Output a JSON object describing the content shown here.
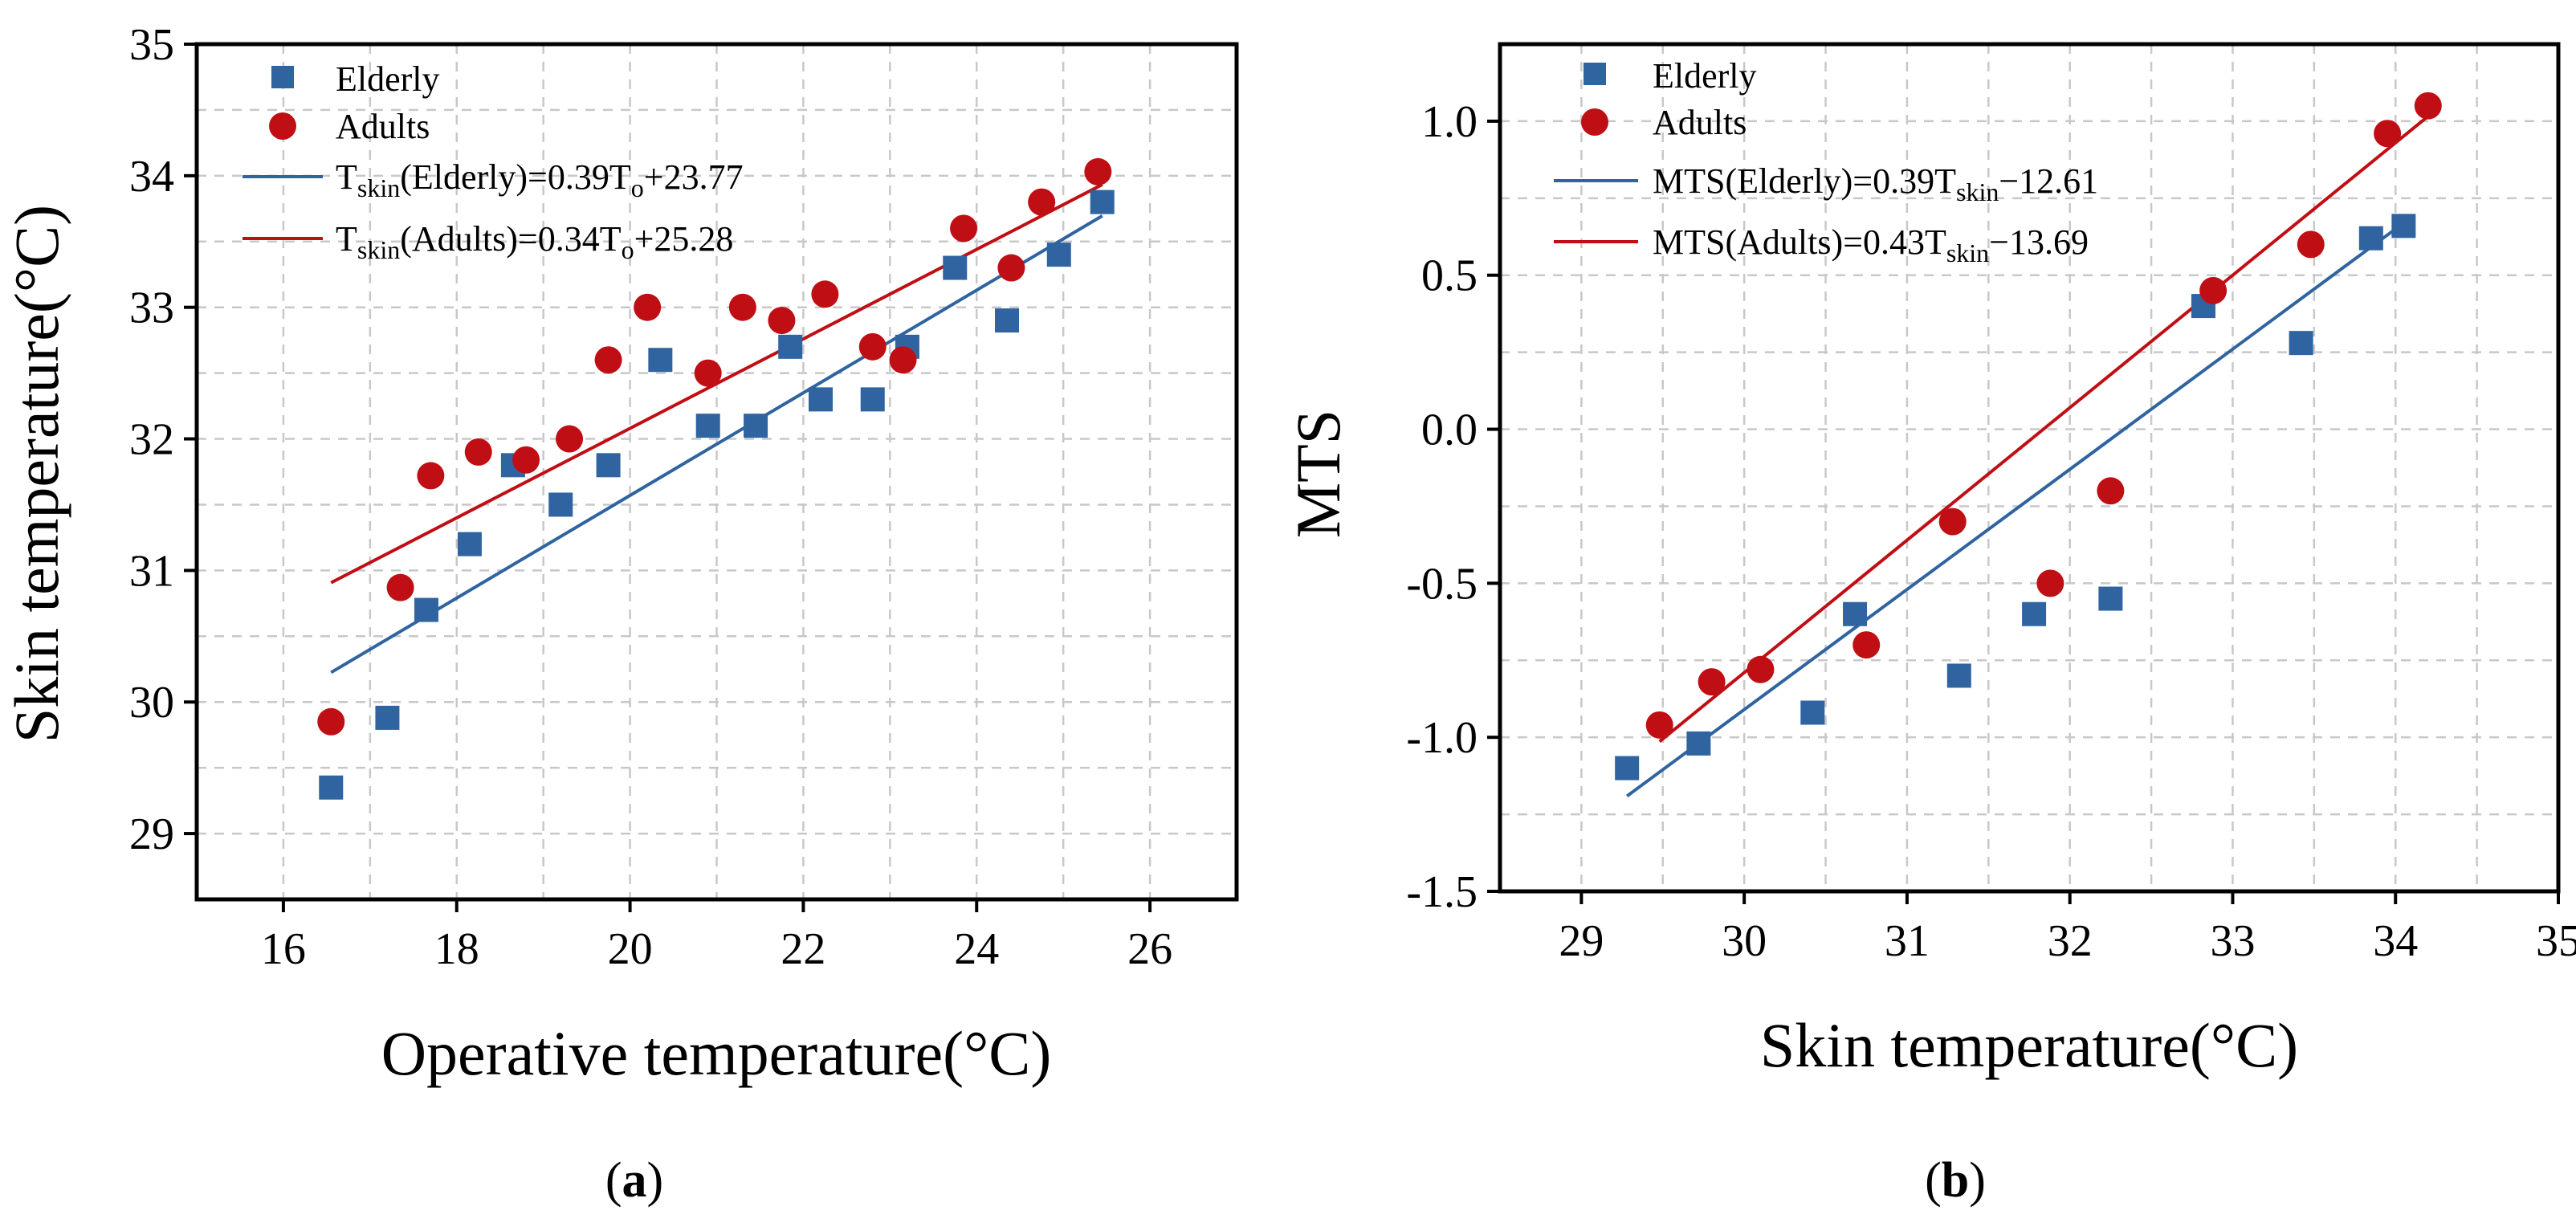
{
  "chart_data": [
    {
      "type": "scatter",
      "panel_label": "(a)",
      "panel_label_parts": [
        "(",
        "a",
        ")"
      ],
      "xlabel": "Operative temperature(°C)",
      "ylabel": "Skin temperature(°C)",
      "xlim": [
        15,
        27
      ],
      "ylim": [
        28.5,
        35
      ],
      "xticks": [
        16,
        18,
        20,
        22,
        24,
        26
      ],
      "yticks": [
        29,
        30,
        31,
        32,
        33,
        34,
        35
      ],
      "series": [
        {
          "name": "Elderly",
          "marker": "square",
          "color": "#2f64a0",
          "points": [
            [
              16.55,
              29.35
            ],
            [
              17.2,
              29.88
            ],
            [
              17.65,
              30.7
            ],
            [
              18.15,
              31.2
            ],
            [
              18.65,
              31.8
            ],
            [
              19.2,
              31.5
            ],
            [
              19.75,
              31.8
            ],
            [
              20.35,
              32.6
            ],
            [
              20.9,
              32.1
            ],
            [
              21.45,
              32.1
            ],
            [
              21.85,
              32.7
            ],
            [
              22.2,
              32.3
            ],
            [
              22.8,
              32.3
            ],
            [
              23.2,
              32.7
            ],
            [
              23.75,
              33.3
            ],
            [
              24.35,
              32.9
            ],
            [
              24.95,
              33.4
            ],
            [
              25.45,
              33.8
            ]
          ]
        },
        {
          "name": "Adults",
          "marker": "circle",
          "color": "#c00f14",
          "points": [
            [
              16.55,
              29.85
            ],
            [
              17.35,
              30.87
            ],
            [
              17.7,
              31.72
            ],
            [
              18.25,
              31.9
            ],
            [
              18.8,
              31.84
            ],
            [
              19.3,
              32.0
            ],
            [
              19.75,
              32.6
            ],
            [
              20.2,
              33.0
            ],
            [
              20.9,
              32.5
            ],
            [
              21.3,
              33.0
            ],
            [
              21.75,
              32.9
            ],
            [
              22.25,
              33.1
            ],
            [
              22.8,
              32.7
            ],
            [
              23.15,
              32.6
            ],
            [
              23.85,
              33.6
            ],
            [
              24.4,
              33.3
            ],
            [
              24.75,
              33.8
            ],
            [
              25.4,
              34.03
            ]
          ]
        }
      ],
      "fits": [
        {
          "name": "Elderly",
          "color": "#2f64a0",
          "slope": 0.39,
          "intercept": 23.77,
          "x_range": [
            16.55,
            25.45
          ],
          "prefix": "T",
          "sub": "skin",
          "mid": "(Elderly)=0.39T",
          "sub2": "o",
          "suffix": "+23.77"
        },
        {
          "name": "Adults",
          "color": "#c00f14",
          "slope": 0.34,
          "intercept": 25.28,
          "x_range": [
            16.55,
            25.45
          ],
          "prefix": "T",
          "sub": "skin",
          "mid": "(Adults)=0.34T",
          "sub2": "o",
          "suffix": "+25.28"
        }
      ]
    },
    {
      "type": "scatter",
      "panel_label": "(b)",
      "panel_label_parts": [
        "(",
        "b",
        ")"
      ],
      "xlabel": "Skin temperature(°C)",
      "ylabel": "MTS",
      "xlim": [
        28.5,
        35
      ],
      "ylim": [
        -1.5,
        1.25
      ],
      "xticks": [
        29,
        30,
        31,
        32,
        33,
        34,
        35
      ],
      "yticks": [
        -1.5,
        -1.0,
        -0.5,
        0.0,
        0.5,
        1.0
      ],
      "ytick_labels": [
        "-1.5",
        "-1.0",
        "-0.5",
        "0.0",
        "0.5",
        "1.0"
      ],
      "series": [
        {
          "name": "Elderly",
          "marker": "square",
          "color": "#2f64a0",
          "points": [
            [
              29.28,
              -1.1
            ],
            [
              29.72,
              -1.02
            ],
            [
              30.42,
              -0.92
            ],
            [
              30.68,
              -0.6
            ],
            [
              31.32,
              -0.8
            ],
            [
              31.78,
              -0.6
            ],
            [
              32.25,
              -0.55
            ],
            [
              32.82,
              0.4
            ],
            [
              33.42,
              0.28
            ],
            [
              33.85,
              0.62
            ],
            [
              34.05,
              0.66
            ]
          ]
        },
        {
          "name": "Adults",
          "marker": "circle",
          "color": "#c00f14",
          "points": [
            [
              29.48,
              -0.96
            ],
            [
              29.8,
              -0.82
            ],
            [
              30.1,
              -0.78
            ],
            [
              30.75,
              -0.7
            ],
            [
              31.28,
              -0.3
            ],
            [
              31.88,
              -0.5
            ],
            [
              32.25,
              -0.2
            ],
            [
              32.88,
              0.45
            ],
            [
              33.48,
              0.6
            ],
            [
              33.95,
              0.96
            ],
            [
              34.2,
              1.05
            ]
          ]
        }
      ],
      "fits": [
        {
          "name": "Elderly",
          "color": "#2f64a0",
          "slope": 0.39,
          "intercept": -12.61,
          "x_range": [
            29.28,
            34.05
          ],
          "prefix": "MTS(Elderly)=0.39T",
          "sub": "skin",
          "suffix": "−12.61"
        },
        {
          "name": "Adults",
          "color": "#c00f14",
          "slope": 0.43,
          "intercept": -13.69,
          "x_range": [
            29.48,
            34.2
          ],
          "prefix": "MTS(Adults)=0.43T",
          "sub": "skin",
          "suffix": "−13.69"
        }
      ]
    }
  ]
}
